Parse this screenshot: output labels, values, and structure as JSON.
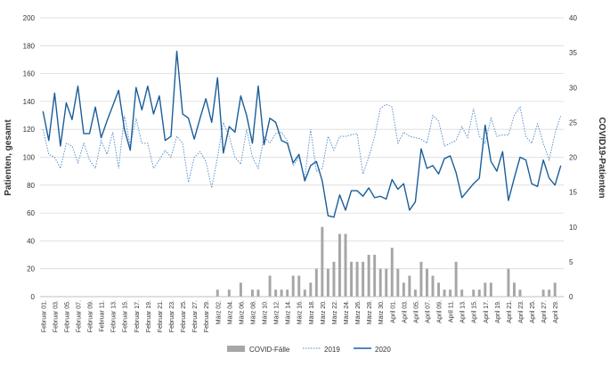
{
  "chart_data": {
    "type": "line",
    "title": "",
    "ylabel_left": "Patienten, gesamt",
    "ylabel_right": "COVID19-Patienten",
    "ylim_left": [
      0,
      200
    ],
    "ylim_right": [
      0,
      40
    ],
    "yticks_left": [
      0,
      20,
      40,
      60,
      80,
      100,
      120,
      140,
      160,
      180,
      200
    ],
    "yticks_right": [
      0,
      5,
      10,
      15,
      20,
      25,
      30,
      35,
      40
    ],
    "grid": true,
    "legend_position": "bottom",
    "x": [
      "Februar 01.",
      "Februar 02.",
      "Februar 03.",
      "Februar 04.",
      "Februar 05.",
      "Februar 06.",
      "Februar 07.",
      "Februar 08.",
      "Februar 09.",
      "Februar 10.",
      "Februar 11.",
      "Februar 12.",
      "Februar 13.",
      "Februar 14.",
      "Februar 15.",
      "Februar 16.",
      "Februar 17.",
      "Februar 18.",
      "Februar 19.",
      "Februar 20.",
      "Februar 21.",
      "Februar 22.",
      "Februar 23.",
      "Februar 24.",
      "Februar 25.",
      "Februar 26.",
      "Februar 27.",
      "Februar 28.",
      "Februar 29.",
      "März 01.",
      "März 02.",
      "März 03.",
      "März 04.",
      "März 05.",
      "März 06.",
      "März 07.",
      "März 08.",
      "März 09.",
      "März 10.",
      "März 11.",
      "März 12.",
      "März 13.",
      "März 14.",
      "März 15.",
      "März 16.",
      "März 17.",
      "März 18.",
      "März 19.",
      "März 20.",
      "März 21.",
      "März 22.",
      "März 23.",
      "März 24.",
      "März 25.",
      "März 26.",
      "März 27.",
      "März 28.",
      "März 29.",
      "März 30.",
      "März 31.",
      "April 01.",
      "April 02.",
      "April 03.",
      "April 04.",
      "April 05.",
      "April 06.",
      "April 07.",
      "April 08.",
      "April 09.",
      "April 10.",
      "April 11.",
      "April 12.",
      "April 13.",
      "April 14.",
      "April 15.",
      "April 16.",
      "April 17.",
      "April 18.",
      "April 19.",
      "April 20.",
      "April 21.",
      "April 22.",
      "April 23.",
      "April 24.",
      "April 25.",
      "April 26.",
      "April 27.",
      "April 28.",
      "April 29.",
      "April 30."
    ],
    "tick_labels": [
      "Februar 01.",
      "Februar 03.",
      "Februar 05.",
      "Februar 07.",
      "Februar 09.",
      "Februar 11.",
      "Februar 13.",
      "Februar 15.",
      "Februar 17.",
      "Februar 19.",
      "Februar 21.",
      "Februar 23.",
      "Februar 25.",
      "Februar 27.",
      "Februar 29.",
      "März 02.",
      "März 04.",
      "März 06.",
      "März 08.",
      "März 10.",
      "März 12.",
      "März 14.",
      "März 16.",
      "März 18.",
      "März 20.",
      "März 22.",
      "März 24.",
      "März 26.",
      "März 28.",
      "März 30.",
      "April 01.",
      "April 03.",
      "April 05.",
      "April 07.",
      "April 09.",
      "April 11.",
      "April 13.",
      "April 15.",
      "April 17.",
      "April 19.",
      "April 21.",
      "April 23.",
      "April 25.",
      "April 27.",
      "April 29."
    ],
    "series": [
      {
        "name": "COVID-Fälle",
        "type": "bar",
        "axis": "right",
        "color": "#a6a6a6",
        "values": [
          0,
          0,
          0,
          0,
          0,
          0,
          0,
          0,
          0,
          0,
          0,
          0,
          0,
          0,
          0,
          0,
          0,
          0,
          0,
          0,
          0,
          0,
          0,
          0,
          0,
          0,
          0,
          0,
          0,
          0,
          1,
          0,
          1,
          0,
          2,
          0,
          1,
          1,
          0,
          3,
          1,
          1,
          1,
          3,
          3,
          1,
          2,
          4,
          10,
          4,
          5,
          9,
          9,
          5,
          5,
          5,
          6,
          6,
          4,
          4,
          7,
          4,
          2,
          3,
          1,
          5,
          4,
          3,
          2,
          1,
          1,
          5,
          1,
          0,
          1,
          1,
          2,
          2,
          0,
          0,
          4,
          2,
          1,
          0,
          0,
          0,
          1,
          1,
          2,
          0
        ]
      },
      {
        "name": "2019",
        "type": "line",
        "axis": "left",
        "style": "dotted",
        "color": "#4a86c8",
        "values": [
          120,
          102,
          100,
          92,
          110,
          108,
          96,
          110,
          98,
          92,
          112,
          102,
          118,
          92,
          130,
          108,
          128,
          110,
          110,
          92,
          98,
          105,
          100,
          115,
          110,
          82,
          100,
          104,
          97,
          78,
          100,
          125,
          115,
          100,
          95,
          120,
          100,
          92,
          115,
          110,
          117,
          118,
          112,
          94,
          100,
          85,
          120,
          90,
          92,
          115,
          105,
          115,
          115,
          116,
          117,
          88,
          100,
          115,
          135,
          138,
          136,
          110,
          118,
          115,
          114,
          113,
          110,
          130,
          126,
          108,
          110,
          112,
          122,
          114,
          135,
          115,
          110,
          128,
          115,
          116,
          116,
          130,
          136,
          115,
          110,
          124,
          110,
          98,
          117,
          130
        ]
      },
      {
        "name": "2020",
        "type": "line",
        "axis": "left",
        "color": "#1a5e9a",
        "values": [
          133,
          112,
          146,
          108,
          139,
          127,
          151,
          117,
          117,
          136,
          114,
          126,
          137,
          148,
          120,
          105,
          150,
          134,
          151,
          131,
          144,
          112,
          115,
          176,
          131,
          128,
          113,
          128,
          142,
          125,
          157,
          103,
          122,
          118,
          144,
          130,
          110,
          151,
          109,
          128,
          125,
          112,
          110,
          96,
          102,
          83,
          94,
          97,
          83,
          58,
          57,
          73,
          62,
          76,
          76,
          72,
          78,
          71,
          72,
          70,
          84,
          77,
          81,
          62,
          68,
          106,
          92,
          94,
          88,
          99,
          101,
          89,
          71,
          76,
          81,
          85,
          123,
          97,
          90,
          104,
          69,
          85,
          100,
          98,
          81,
          79,
          98,
          85,
          80,
          94
        ]
      }
    ]
  }
}
